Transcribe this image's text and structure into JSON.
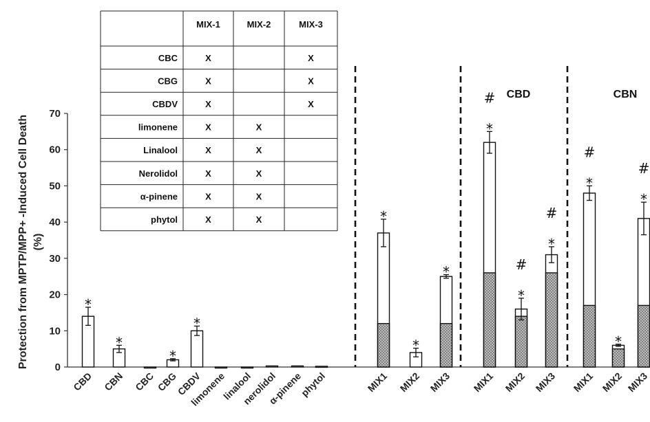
{
  "chart_data": {
    "type": "bar",
    "ylabel_line1": "Protection from MPTP/MPP+ -Induced Cell Death",
    "ylabel_line2": "(%)",
    "ylim": [
      0,
      70
    ],
    "yticks": [
      0,
      10,
      20,
      30,
      40,
      50,
      60,
      70
    ],
    "grid": false,
    "groups": [
      {
        "title": "",
        "bars": [
          {
            "label": "CBD",
            "value": 14,
            "error": 2.5,
            "sig": "*"
          },
          {
            "label": "CBN",
            "value": 5,
            "error": 1,
            "sig": "*"
          },
          {
            "label": "CBC",
            "value": 0,
            "error": 0,
            "sig": ""
          },
          {
            "label": "CBG",
            "value": 2,
            "error": 0.3,
            "sig": "*"
          },
          {
            "label": "CBDV",
            "value": 10,
            "error": 1.3,
            "sig": "*"
          },
          {
            "label": "limonene",
            "value": 0,
            "error": 0,
            "sig": ""
          },
          {
            "label": "linalool",
            "value": 0,
            "error": 0,
            "sig": ""
          },
          {
            "label": "nerolidol",
            "value": 0.3,
            "error": 0,
            "sig": ""
          },
          {
            "label": "α-pinene",
            "value": 0.3,
            "error": 0,
            "sig": ""
          },
          {
            "label": "phytol",
            "value": 0.2,
            "error": 0,
            "sig": ""
          }
        ]
      },
      {
        "title": "",
        "bars": [
          {
            "label": "MIX1",
            "value": 37,
            "error": 3.8,
            "base": 12,
            "sig": "*"
          },
          {
            "label": "MIX2",
            "value": 4,
            "error": 1.2,
            "sig": "*"
          },
          {
            "label": "MIX3",
            "value": 25,
            "error": 0.5,
            "base": 12,
            "sig": "*"
          }
        ]
      },
      {
        "title": "CBD",
        "bars": [
          {
            "label": "MIX1",
            "value": 62,
            "error": 3,
            "base": 26,
            "sig": "*",
            "sig2": "#"
          },
          {
            "label": "MIX2",
            "value": 16,
            "error": 3,
            "base": 14,
            "sig": "*",
            "sig2": "#"
          },
          {
            "label": "MIX3",
            "value": 31,
            "error": 2.2,
            "base": 26,
            "sig": "*",
            "sig2": "#"
          }
        ]
      },
      {
        "title": "CBN",
        "bars": [
          {
            "label": "MIX1",
            "value": 48,
            "error": 2,
            "base": 17,
            "sig": "*",
            "sig2": "#"
          },
          {
            "label": "MIX2",
            "value": 6,
            "error": 0.3,
            "base": 5,
            "sig": "*"
          },
          {
            "label": "MIX3",
            "value": 41,
            "error": 4.5,
            "base": 17,
            "sig": "*",
            "sig2": "#"
          }
        ]
      }
    ]
  },
  "table": {
    "columns": [
      "",
      "MIX-1",
      "MIX-2",
      "MIX-3"
    ],
    "rows": [
      [
        "CBC",
        "X",
        "",
        "X"
      ],
      [
        "CBG",
        "X",
        "",
        "X"
      ],
      [
        "CBDV",
        "X",
        "",
        "X"
      ],
      [
        "limonene",
        "X",
        "X",
        ""
      ],
      [
        "Linalool",
        "X",
        "X",
        ""
      ],
      [
        "Nerolidol",
        "X",
        "X",
        ""
      ],
      [
        "α-pinene",
        "X",
        "X",
        ""
      ],
      [
        "phytol",
        "X",
        "X",
        ""
      ]
    ]
  },
  "colors": {
    "bar_fill": "#ffffff",
    "stroke": "#111111",
    "base_fill": "#8a8a8a"
  }
}
